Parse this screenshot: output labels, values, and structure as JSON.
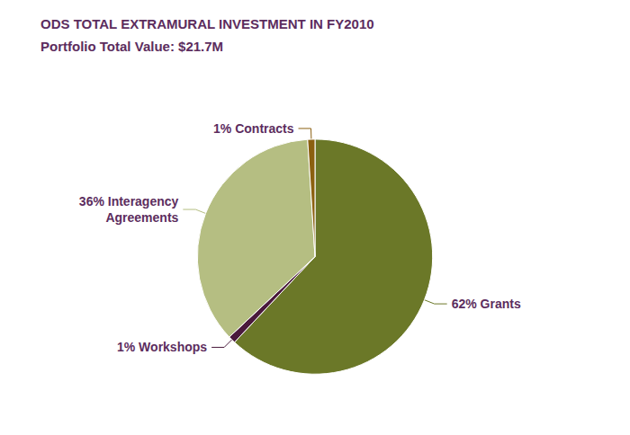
{
  "chart_data": {
    "type": "pie",
    "title": "ODS TOTAL EXTRAMURAL INVESTMENT IN FY2010",
    "subtitle": "Portfolio Total Value: $21.7M",
    "categories": [
      "62% Grants",
      "1% Workshops",
      "36% Interagency\nAgreements",
      "1% Contracts"
    ],
    "values": [
      62,
      1,
      36,
      1
    ],
    "colors": [
      "#6b7828",
      "#4a1a3c",
      "#b5be82",
      "#8b6010"
    ],
    "legend": false
  }
}
